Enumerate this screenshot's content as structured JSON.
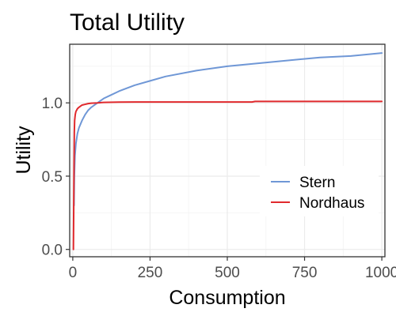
{
  "chart_data": {
    "type": "line",
    "title": "Total Utility",
    "xlabel": "Consumption",
    "ylabel": "Utility",
    "xlim": [
      -10,
      1010
    ],
    "ylim": [
      -0.05,
      1.4
    ],
    "x_ticks": [
      0,
      250,
      500,
      750,
      1000
    ],
    "x_tick_labels": [
      "0",
      "250",
      "500",
      "750",
      "1000"
    ],
    "y_ticks": [
      0.0,
      0.5,
      1.0
    ],
    "y_tick_labels": [
      "0.0",
      "0.5",
      "1.0"
    ],
    "grid": true,
    "legend_position": "right",
    "series": [
      {
        "name": "Stern",
        "color": "#6f97d6",
        "x": [
          4,
          5,
          7,
          10,
          15,
          20,
          30,
          40,
          50,
          60,
          80,
          100,
          120,
          150,
          200,
          250,
          300,
          400,
          500,
          600,
          700,
          800,
          900,
          1000
        ],
        "y": [
          0.3,
          0.5,
          0.64,
          0.72,
          0.79,
          0.83,
          0.88,
          0.92,
          0.95,
          0.97,
          1.0,
          1.03,
          1.05,
          1.08,
          1.12,
          1.15,
          1.18,
          1.22,
          1.25,
          1.27,
          1.29,
          1.31,
          1.32,
          1.34
        ]
      },
      {
        "name": "Nordhaus",
        "color": "#e0292d",
        "x": [
          2,
          4,
          5,
          6,
          8,
          10,
          15,
          20,
          30,
          40,
          50,
          60,
          80,
          100,
          150,
          200,
          300,
          400,
          500,
          580,
          590,
          700,
          800,
          900,
          1000
        ],
        "y": [
          0.0,
          0.55,
          0.8,
          0.88,
          0.92,
          0.94,
          0.96,
          0.97,
          0.985,
          0.99,
          0.995,
          0.998,
          1.0,
          1.003,
          1.005,
          1.006,
          1.006,
          1.006,
          1.006,
          1.006,
          1.01,
          1.01,
          1.01,
          1.01,
          1.01
        ]
      }
    ]
  },
  "style": {
    "panel_border": "#333333",
    "grid_major": "#ebebeb",
    "grid_minor": "#f5f5f5",
    "tick_color": "#333333"
  }
}
